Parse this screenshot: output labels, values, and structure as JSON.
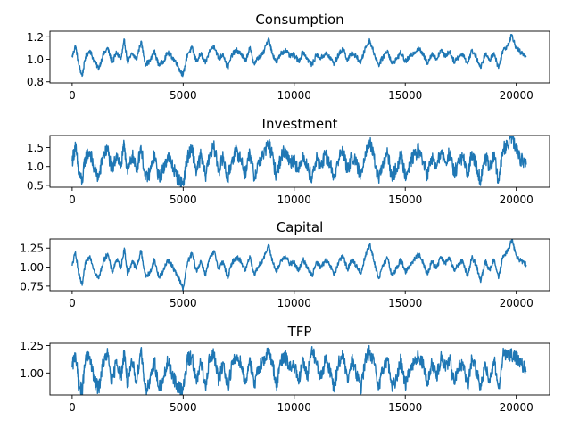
{
  "chart_data": [
    {
      "type": "line",
      "title": "Consumption",
      "xlim": [
        -1000,
        21500
      ],
      "ylim": [
        0.79,
        1.25
      ],
      "xticks": [
        0,
        5000,
        10000,
        15000,
        20000
      ],
      "yticks": [
        0.8,
        1.0,
        1.2
      ],
      "ytick_labels": [
        "0.8",
        "1.0",
        "1.2"
      ],
      "color": "#1f77b4",
      "grid": false,
      "series": [
        {
          "x": [
            0,
            150,
            300,
            450,
            600,
            800,
            1000,
            1200,
            1400,
            1600,
            1800,
            2000,
            2200,
            2350,
            2500,
            2700,
            2900,
            3100,
            3300,
            3500,
            3700,
            3900,
            4100,
            4300,
            4500,
            4700,
            4850,
            5000,
            5200,
            5400,
            5600,
            5800,
            6000,
            6200,
            6400,
            6600,
            6800,
            7000,
            7200,
            7400,
            7600,
            7800,
            8000,
            8200,
            8400,
            8600,
            8850,
            9000,
            9200,
            9400,
            9600,
            9800,
            10000,
            10200,
            10400,
            10600,
            10800,
            11000,
            11200,
            11400,
            11600,
            11800,
            12000,
            12200,
            12400,
            12600,
            12800,
            13000,
            13200,
            13400,
            13600,
            13800,
            14000,
            14200,
            14400,
            14600,
            14800,
            15000,
            15200,
            15400,
            15600,
            15800,
            16000,
            16200,
            16400,
            16600,
            16800,
            17000,
            17200,
            17400,
            17600,
            17800,
            18000,
            18200,
            18400,
            18600,
            18800,
            19000,
            19200,
            19400,
            19600,
            19800,
            20000,
            20200,
            20450
          ],
          "y": [
            1.02,
            1.12,
            0.95,
            0.85,
            1.02,
            1.08,
            0.98,
            0.92,
            1.04,
            1.1,
            0.97,
            1.06,
            1.0,
            1.17,
            0.97,
            1.05,
            1.0,
            1.16,
            0.96,
            0.98,
            1.07,
            0.95,
            0.98,
            1.06,
            1.02,
            0.97,
            0.9,
            0.86,
            1.05,
            1.1,
            0.98,
            1.05,
            0.96,
            1.08,
            1.12,
            1.0,
            1.05,
            0.92,
            1.04,
            1.08,
            1.05,
            0.98,
            1.1,
            0.96,
            1.02,
            1.05,
            1.19,
            1.06,
            0.97,
            1.05,
            1.08,
            1.03,
            1.04,
            0.98,
            1.07,
            1.0,
            0.95,
            1.04,
            1.01,
            1.05,
            1.02,
            0.96,
            1.04,
            1.1,
            0.99,
            1.06,
            1.02,
            0.97,
            1.1,
            1.17,
            1.05,
            0.95,
            1.02,
            1.08,
            0.96,
            1.0,
            1.06,
            0.98,
            1.02,
            1.06,
            1.1,
            1.04,
            0.97,
            1.05,
            1.0,
            1.08,
            1.03,
            1.07,
            0.98,
            1.02,
            1.05,
            0.96,
            1.08,
            1.02,
            0.92,
            1.05,
            0.99,
            1.06,
            0.92,
            1.08,
            1.12,
            1.22,
            1.1,
            1.06,
            1.02
          ]
        }
      ]
    },
    {
      "type": "line",
      "title": "Investment",
      "xlim": [
        -1000,
        21500
      ],
      "ylim": [
        0.45,
        1.82
      ],
      "xticks": [
        0,
        5000,
        10000,
        15000,
        20000
      ],
      "yticks": [
        0.5,
        1.0,
        1.5
      ],
      "ytick_labels": [
        "0.5",
        "1.0",
        "1.5"
      ],
      "color": "#1f77b4",
      "grid": false,
      "series": [
        {
          "x": [
            0,
            150,
            300,
            450,
            600,
            800,
            1000,
            1200,
            1400,
            1600,
            1800,
            2000,
            2200,
            2350,
            2500,
            2700,
            2900,
            3100,
            3300,
            3500,
            3700,
            3900,
            4100,
            4300,
            4500,
            4700,
            4850,
            5000,
            5200,
            5400,
            5600,
            5800,
            6000,
            6200,
            6400,
            6600,
            6800,
            7000,
            7200,
            7400,
            7600,
            7800,
            8000,
            8200,
            8400,
            8600,
            8850,
            9000,
            9200,
            9400,
            9600,
            9800,
            10000,
            10200,
            10400,
            10600,
            10800,
            11000,
            11200,
            11400,
            11600,
            11800,
            12000,
            12200,
            12400,
            12600,
            12800,
            13000,
            13200,
            13400,
            13600,
            13800,
            14000,
            14200,
            14400,
            14600,
            14800,
            15000,
            15200,
            15400,
            15600,
            15800,
            16000,
            16200,
            16400,
            16600,
            16800,
            17000,
            17200,
            17400,
            17600,
            17800,
            18000,
            18200,
            18400,
            18600,
            18800,
            19000,
            19200,
            19400,
            19600,
            19800,
            20000,
            20200,
            20450
          ],
          "y": [
            1.15,
            1.55,
            0.8,
            0.6,
            1.25,
            1.4,
            0.9,
            0.7,
            1.3,
            1.45,
            0.85,
            1.35,
            1.0,
            1.6,
            0.8,
            1.3,
            0.9,
            1.55,
            0.65,
            0.85,
            1.3,
            0.7,
            0.9,
            1.3,
            1.05,
            0.75,
            0.6,
            0.55,
            1.25,
            1.45,
            0.85,
            1.3,
            0.75,
            1.35,
            1.5,
            0.9,
            1.25,
            0.65,
            1.2,
            1.4,
            1.2,
            0.8,
            1.4,
            0.7,
            1.1,
            1.3,
            1.6,
            1.3,
            0.75,
            1.25,
            1.45,
            1.1,
            1.2,
            0.85,
            1.35,
            0.95,
            0.7,
            1.2,
            1.0,
            1.3,
            1.1,
            0.7,
            1.2,
            1.45,
            0.85,
            1.3,
            1.05,
            0.75,
            1.4,
            1.65,
            1.2,
            0.65,
            1.05,
            1.35,
            0.7,
            0.95,
            1.3,
            0.8,
            1.05,
            1.3,
            1.45,
            1.15,
            0.75,
            1.25,
            0.95,
            1.4,
            1.1,
            1.35,
            0.8,
            1.1,
            1.25,
            0.7,
            1.4,
            1.05,
            0.6,
            1.3,
            0.9,
            1.3,
            0.6,
            1.45,
            1.55,
            1.8,
            1.45,
            1.2,
            1.05
          ]
        }
      ]
    },
    {
      "type": "line",
      "title": "Capital",
      "xlim": [
        -1000,
        21500
      ],
      "ylim": [
        0.69,
        1.37
      ],
      "xticks": [
        0,
        5000,
        10000,
        15000,
        20000
      ],
      "yticks": [
        0.75,
        1.0,
        1.25
      ],
      "ytick_labels": [
        "0.75",
        "1.00",
        "1.25"
      ],
      "color": "#1f77b4",
      "grid": false,
      "series": [
        {
          "x": [
            0,
            150,
            300,
            450,
            600,
            800,
            1000,
            1200,
            1400,
            1600,
            1800,
            2000,
            2200,
            2350,
            2500,
            2700,
            2900,
            3100,
            3300,
            3500,
            3700,
            3900,
            4100,
            4300,
            4500,
            4700,
            4850,
            5000,
            5200,
            5400,
            5600,
            5800,
            6000,
            6200,
            6400,
            6600,
            6800,
            7000,
            7200,
            7400,
            7600,
            7800,
            8000,
            8200,
            8400,
            8600,
            8850,
            9000,
            9200,
            9400,
            9600,
            9800,
            10000,
            10200,
            10400,
            10600,
            10800,
            11000,
            11200,
            11400,
            11600,
            11800,
            12000,
            12200,
            12400,
            12600,
            12800,
            13000,
            13200,
            13400,
            13600,
            13800,
            14000,
            14200,
            14400,
            14600,
            14800,
            15000,
            15200,
            15400,
            15600,
            15800,
            16000,
            16200,
            16400,
            16600,
            16800,
            17000,
            17200,
            17400,
            17600,
            17800,
            18000,
            18200,
            18400,
            18600,
            18800,
            19000,
            19200,
            19400,
            19600,
            19800,
            20000,
            20200,
            20450
          ],
          "y": [
            1.02,
            1.2,
            0.9,
            0.76,
            1.05,
            1.15,
            0.95,
            0.85,
            1.07,
            1.18,
            0.93,
            1.1,
            1.0,
            1.25,
            0.9,
            1.08,
            0.98,
            1.22,
            0.88,
            0.92,
            1.1,
            0.87,
            0.94,
            1.1,
            1.02,
            0.9,
            0.82,
            0.72,
            1.07,
            1.18,
            0.95,
            1.08,
            0.9,
            1.12,
            1.2,
            0.98,
            1.08,
            0.85,
            1.06,
            1.13,
            1.08,
            0.95,
            1.15,
            0.9,
            1.02,
            1.1,
            1.28,
            1.1,
            0.93,
            1.08,
            1.15,
            1.04,
            1.06,
            0.95,
            1.1,
            1.0,
            0.88,
            1.06,
            1.0,
            1.08,
            1.03,
            0.9,
            1.06,
            1.15,
            0.97,
            1.1,
            1.02,
            0.91,
            1.15,
            1.3,
            1.07,
            0.85,
            1.02,
            1.12,
            0.89,
            0.98,
            1.1,
            0.94,
            1.02,
            1.1,
            1.17,
            1.07,
            0.9,
            1.08,
            0.98,
            1.14,
            1.05,
            1.12,
            0.95,
            1.04,
            1.08,
            0.88,
            1.13,
            1.03,
            0.8,
            1.08,
            0.96,
            1.1,
            0.85,
            1.15,
            1.2,
            1.36,
            1.15,
            1.08,
            1.03
          ]
        }
      ]
    },
    {
      "type": "line",
      "title": "TFP",
      "xlim": [
        -1000,
        21500
      ],
      "ylim": [
        0.8,
        1.27
      ],
      "xticks": [
        0,
        5000,
        10000,
        15000,
        20000
      ],
      "yticks": [
        1.0,
        1.25
      ],
      "ytick_labels": [
        "1.00",
        "1.25"
      ],
      "color": "#1f77b4",
      "grid": false,
      "series": [
        {
          "x": [
            0,
            150,
            300,
            450,
            600,
            800,
            1000,
            1200,
            1400,
            1600,
            1800,
            2000,
            2200,
            2350,
            2500,
            2700,
            2900,
            3100,
            3300,
            3500,
            3700,
            3900,
            4100,
            4300,
            4500,
            4700,
            4850,
            5000,
            5200,
            5400,
            5600,
            5800,
            6000,
            6200,
            6400,
            6600,
            6800,
            7000,
            7200,
            7400,
            7600,
            7800,
            8000,
            8200,
            8400,
            8600,
            8850,
            9000,
            9200,
            9400,
            9600,
            9800,
            10000,
            10200,
            10400,
            10600,
            10800,
            11000,
            11200,
            11400,
            11600,
            11800,
            12000,
            12200,
            12400,
            12600,
            12800,
            13000,
            13200,
            13400,
            13600,
            13800,
            14000,
            14200,
            14400,
            14600,
            14800,
            15000,
            15200,
            15400,
            15600,
            15800,
            16000,
            16200,
            16400,
            16600,
            16800,
            17000,
            17200,
            17400,
            17600,
            17800,
            18000,
            18200,
            18400,
            18600,
            18800,
            19000,
            19200,
            19400,
            19600,
            19800,
            20000,
            20200,
            20450
          ],
          "y": [
            1.05,
            1.18,
            0.88,
            0.84,
            1.12,
            1.15,
            0.92,
            0.86,
            1.1,
            1.17,
            0.9,
            1.12,
            0.96,
            1.2,
            0.88,
            1.1,
            0.93,
            1.22,
            0.85,
            0.9,
            1.12,
            0.86,
            0.92,
            1.1,
            1.0,
            0.88,
            0.86,
            0.85,
            1.12,
            1.15,
            0.9,
            1.1,
            0.88,
            1.15,
            1.16,
            0.92,
            1.1,
            0.86,
            1.08,
            1.14,
            1.1,
            0.9,
            1.14,
            0.87,
            1.05,
            1.12,
            1.18,
            1.12,
            0.88,
            1.1,
            1.15,
            1.04,
            1.08,
            0.9,
            1.12,
            0.96,
            1.24,
            1.08,
            0.95,
            1.12,
            1.04,
            0.86,
            1.1,
            1.16,
            0.92,
            1.12,
            1.0,
            0.86,
            1.12,
            1.2,
            1.08,
            0.85,
            1.04,
            1.14,
            0.87,
            0.94,
            1.12,
            0.9,
            1.02,
            1.12,
            1.15,
            1.08,
            0.88,
            1.1,
            0.95,
            1.14,
            1.05,
            1.12,
            0.9,
            1.04,
            1.1,
            0.86,
            1.14,
            1.02,
            0.85,
            1.1,
            0.93,
            1.12,
            0.86,
            1.16,
            1.18,
            1.16,
            1.14,
            1.08,
            1.02
          ]
        }
      ]
    }
  ]
}
